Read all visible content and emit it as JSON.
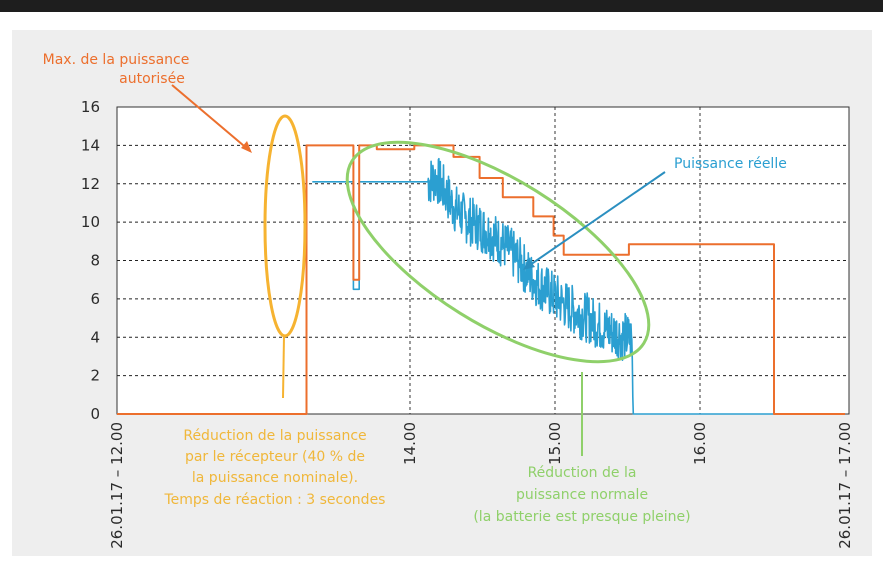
{
  "chart_data": {
    "type": "line",
    "title": "",
    "xlabel": "",
    "ylabel": "",
    "ylim": [
      0,
      16
    ],
    "yticks": [
      0,
      2,
      4,
      6,
      8,
      10,
      12,
      14,
      16
    ],
    "grid": true,
    "x_tick_labels": [
      "26.01.17 – 12.00",
      "14.00",
      "15.00",
      "16.00",
      "26.01.17 – 17.00"
    ],
    "x_tick_hours": [
      12.5,
      14.0,
      15.0,
      16.0,
      17.0
    ],
    "series": [
      {
        "name": "Max. de la puissance autorisée",
        "color": "#ec6f2d",
        "points": [
          [
            12.5,
            0
          ],
          [
            13.47,
            0
          ],
          [
            13.47,
            14
          ],
          [
            13.71,
            14
          ],
          [
            13.71,
            7.0
          ],
          [
            13.74,
            7.0
          ],
          [
            13.74,
            14
          ],
          [
            13.83,
            14
          ],
          [
            13.83,
            13.8
          ],
          [
            14.03,
            13.8
          ],
          [
            14.03,
            14
          ],
          [
            14.3,
            14
          ],
          [
            14.3,
            13.4
          ],
          [
            14.48,
            13.4
          ],
          [
            14.48,
            12.3
          ],
          [
            14.64,
            12.3
          ],
          [
            14.64,
            11.3
          ],
          [
            14.85,
            11.3
          ],
          [
            14.85,
            10.3
          ],
          [
            14.99,
            10.3
          ],
          [
            14.99,
            9.3
          ],
          [
            15.06,
            9.3
          ],
          [
            15.06,
            8.3
          ],
          [
            15.51,
            8.3
          ],
          [
            15.51,
            8.85
          ],
          [
            16.25,
            8.85
          ],
          [
            16.25,
            8.85
          ],
          [
            16.51,
            8.85
          ],
          [
            16.51,
            0
          ],
          [
            17.0,
            0
          ]
        ]
      },
      {
        "name": "Puissance réelle",
        "color": "#2b9fd1",
        "points": [
          [
            13.5,
            12.1
          ],
          [
            13.71,
            12.1
          ],
          [
            13.71,
            6.5
          ],
          [
            13.74,
            6.5
          ],
          [
            13.74,
            12.1
          ],
          [
            14.12,
            12.1
          ],
          [
            14.18,
            12.3
          ],
          [
            14.25,
            11.5
          ],
          [
            14.3,
            10.8
          ],
          [
            14.38,
            10.2
          ],
          [
            14.45,
            9.9
          ],
          [
            14.55,
            9.4
          ],
          [
            14.65,
            8.8
          ],
          [
            14.75,
            8.0
          ],
          [
            14.85,
            7.0
          ],
          [
            14.95,
            6.4
          ],
          [
            15.05,
            5.8
          ],
          [
            15.15,
            5.3
          ],
          [
            15.25,
            4.9
          ],
          [
            15.35,
            4.4
          ],
          [
            15.45,
            4.1
          ],
          [
            15.53,
            3.9
          ],
          [
            15.54,
            0
          ],
          [
            17.0,
            0
          ]
        ]
      }
    ],
    "annotations": {
      "max_power": [
        "Max. de la puissance",
        "autorisée"
      ],
      "receiver_reduction": [
        "Réduction de la puissance",
        "par le récepteur (40 % de",
        "la puissance nominale).",
        "Temps de réaction : 3 secondes"
      ],
      "actual_power": [
        "Puissance réelle"
      ],
      "normal_reduction": [
        "Réduction de la",
        "puissance normale",
        "(la batterie est presque pleine)"
      ]
    }
  }
}
